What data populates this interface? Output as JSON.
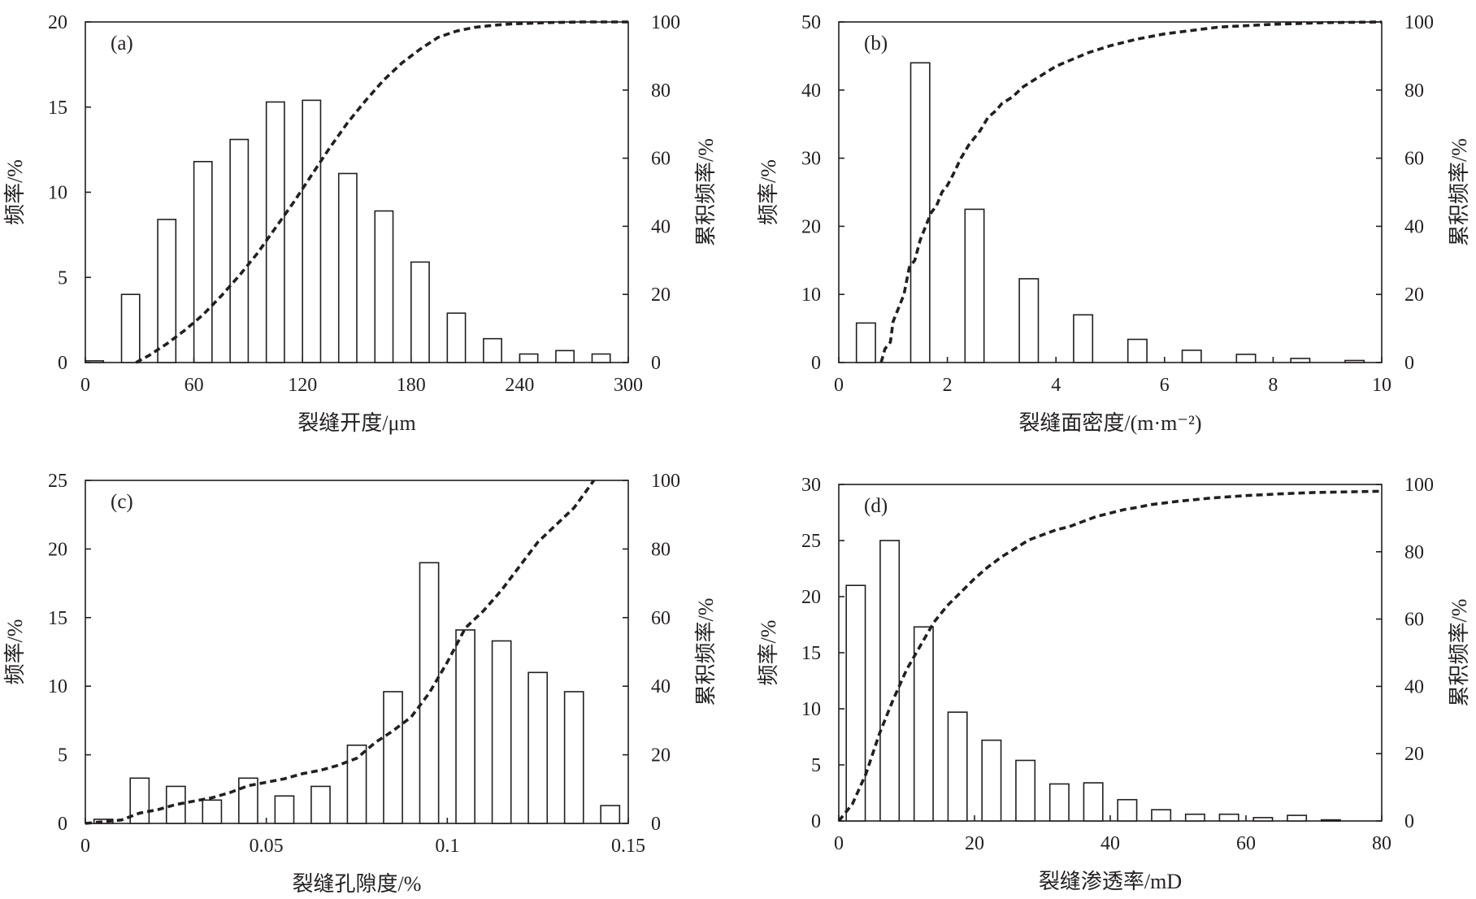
{
  "figure": {
    "colors": {
      "ink": "#231f20",
      "bar_fill": "#ffffff",
      "background": "#ffffff"
    }
  },
  "chart_data": [
    {
      "panel": "(a)",
      "type": "bar",
      "overlay": "line",
      "xlabel": "裂缝开度/μm",
      "ylabel": "频率/%",
      "y2label": "累积频率/%",
      "xlim": [
        0,
        300
      ],
      "xticks": [
        0,
        60,
        120,
        180,
        240,
        300
      ],
      "xtick_labels": [
        "0",
        "60",
        "120",
        "180",
        "240",
        "300"
      ],
      "ylim": [
        0,
        20
      ],
      "yticks": [
        0,
        5,
        10,
        15,
        20
      ],
      "ytick_labels": [
        "0",
        "5",
        "10",
        "15",
        "20"
      ],
      "y2lim": [
        0,
        100
      ],
      "y2ticks": [
        0,
        20,
        40,
        60,
        80,
        100
      ],
      "y2tick_labels": [
        "0",
        "20",
        "40",
        "60",
        "80",
        "100"
      ],
      "bar_width": 10,
      "bars": {
        "x": [
          5,
          25,
          45,
          65,
          85,
          105,
          125,
          145,
          165,
          185,
          205,
          225,
          245,
          265,
          285
        ],
        "values": [
          0.1,
          4.0,
          8.4,
          11.8,
          13.1,
          15.3,
          15.4,
          11.1,
          8.9,
          5.9,
          2.9,
          1.4,
          0.5,
          0.7,
          0.5
        ]
      },
      "cumulative": {
        "x": [
          28,
          35,
          45,
          55,
          65,
          75,
          85,
          95,
          105,
          115,
          125,
          135,
          145,
          155,
          165,
          175,
          185,
          195,
          205,
          215,
          225,
          235,
          245,
          255,
          265,
          275,
          285,
          300
        ],
        "values": [
          0,
          2,
          5.5,
          9.5,
          14,
          19.5,
          25.5,
          32,
          39.5,
          47,
          55,
          63,
          70.5,
          77,
          83,
          88,
          92,
          95.5,
          97.3,
          98.4,
          99.0,
          99.4,
          99.6,
          99.8,
          99.9,
          100,
          100,
          100
        ]
      }
    },
    {
      "panel": "(b)",
      "type": "bar",
      "overlay": "line",
      "xlabel": "裂缝面密度/(m·m⁻²)",
      "ylabel": "频率/%",
      "y2label": "累积频率/%",
      "xlim": [
        0,
        10
      ],
      "xticks": [
        0,
        2,
        4,
        6,
        8,
        10
      ],
      "xtick_labels": [
        "0",
        "2",
        "4",
        "6",
        "8",
        "10"
      ],
      "ylim": [
        0,
        50
      ],
      "yticks": [
        0,
        10,
        20,
        30,
        40,
        50
      ],
      "ytick_labels": [
        "0",
        "10",
        "20",
        "30",
        "40",
        "50"
      ],
      "y2lim": [
        0,
        100
      ],
      "y2ticks": [
        0,
        20,
        40,
        60,
        80,
        100
      ],
      "y2tick_labels": [
        "0",
        "20",
        "40",
        "60",
        "80",
        "100"
      ],
      "bar_width": 0.35,
      "bars": {
        "x": [
          0.5,
          1.5,
          2.5,
          3.5,
          4.5,
          5.5,
          6.5,
          7.5,
          8.5,
          9.5
        ],
        "values": [
          5.8,
          44.0,
          22.5,
          12.3,
          7.0,
          3.4,
          1.8,
          1.2,
          0.6,
          0.3
        ]
      },
      "cumulative": {
        "x": [
          0.78,
          0.85,
          0.95,
          1.0,
          1.1,
          1.2,
          1.3,
          1.4,
          1.5,
          1.6,
          1.7,
          1.8,
          1.9,
          2.0,
          2.1,
          2.25,
          2.4,
          2.5,
          2.6,
          2.75,
          2.9,
          3.0,
          3.2,
          3.4,
          3.6,
          3.8,
          4.0,
          4.3,
          4.6,
          5.0,
          5.5,
          6.0,
          6.5,
          7.0,
          8.0,
          9.0,
          10.0
        ],
        "values": [
          0,
          4,
          6,
          12,
          16,
          20,
          28,
          30,
          36,
          40,
          44,
          46,
          50,
          52,
          55,
          60,
          64,
          66,
          68,
          72,
          74,
          76,
          78,
          81,
          83,
          85,
          87,
          89,
          91,
          93,
          95,
          96.5,
          97.5,
          98.5,
          99.3,
          99.8,
          100
        ]
      }
    },
    {
      "panel": "(c)",
      "type": "bar",
      "overlay": "line",
      "xlabel": "裂缝孔隙度/%",
      "ylabel": "频率/%",
      "y2label": "累积频率/%",
      "xlim": [
        0,
        0.15
      ],
      "xticks": [
        0,
        0.05,
        0.1,
        0.15
      ],
      "xtick_labels": [
        "0",
        "0.05",
        "0.1",
        "0.15"
      ],
      "ylim": [
        0,
        25
      ],
      "yticks": [
        0,
        5,
        10,
        15,
        20,
        25
      ],
      "ytick_labels": [
        "0",
        "5",
        "10",
        "15",
        "20",
        "25"
      ],
      "y2lim": [
        0,
        100
      ],
      "y2ticks": [
        0,
        20,
        40,
        60,
        80,
        100
      ],
      "y2tick_labels": [
        "0",
        "20",
        "40",
        "60",
        "80",
        "100"
      ],
      "bar_width": 0.0052,
      "bars": {
        "x": [
          0.005,
          0.015,
          0.025,
          0.035,
          0.045,
          0.055,
          0.065,
          0.075,
          0.085,
          0.095,
          0.105,
          0.115,
          0.125,
          0.135,
          0.145
        ],
        "values": [
          0.3,
          3.3,
          2.7,
          1.7,
          3.3,
          2.0,
          2.7,
          5.7,
          9.6,
          19.0,
          14.1,
          13.3,
          11.0,
          9.6,
          1.3
        ]
      },
      "cumulative": {
        "x": [
          0.0,
          0.005,
          0.01,
          0.015,
          0.02,
          0.025,
          0.03,
          0.035,
          0.04,
          0.045,
          0.05,
          0.055,
          0.06,
          0.065,
          0.07,
          0.075,
          0.08,
          0.085,
          0.09,
          0.095,
          0.1,
          0.105,
          0.11,
          0.115,
          0.12,
          0.125,
          0.13,
          0.135,
          0.1405
        ],
        "values": [
          0,
          0.5,
          1,
          3,
          4,
          5.5,
          6.5,
          7.5,
          9,
          11,
          12,
          13,
          14.5,
          15.5,
          17,
          19,
          23.5,
          27,
          31,
          38,
          47,
          57,
          62,
          68,
          75,
          82,
          87,
          92,
          100
        ]
      }
    },
    {
      "panel": "(d)",
      "type": "bar",
      "overlay": "line",
      "xlabel": "裂缝渗透率/mD",
      "ylabel": "频率/%",
      "y2label": "累积频率/%",
      "xlim": [
        0,
        80
      ],
      "xticks": [
        0,
        20,
        40,
        60,
        80
      ],
      "xtick_labels": [
        "0",
        "20",
        "40",
        "60",
        "80"
      ],
      "ylim": [
        0,
        30
      ],
      "yticks": [
        0,
        5,
        10,
        15,
        20,
        25,
        30
      ],
      "ytick_labels": [
        "0",
        "5",
        "10",
        "15",
        "20",
        "25",
        "30"
      ],
      "y2lim": [
        0,
        100
      ],
      "y2ticks": [
        0,
        20,
        40,
        60,
        80,
        100
      ],
      "y2tick_labels": [
        "0",
        "20",
        "40",
        "60",
        "80",
        "100"
      ],
      "bar_width": 2.8,
      "bars": {
        "x": [
          2.5,
          7.5,
          12.5,
          17.5,
          22.5,
          27.5,
          32.5,
          37.5,
          42.5,
          47.5,
          52.5,
          57.5,
          62.5,
          67.5,
          72.5
        ],
        "values": [
          21.0,
          25.0,
          17.3,
          9.7,
          7.2,
          5.4,
          3.3,
          3.4,
          1.9,
          1.0,
          0.6,
          0.6,
          0.3,
          0.5,
          0.1
        ]
      },
      "cumulative": {
        "x": [
          0,
          2,
          4,
          6,
          8,
          10,
          12,
          14,
          16,
          18,
          20,
          22,
          24,
          26,
          28,
          30,
          32,
          34,
          36,
          38,
          40,
          42,
          44,
          46,
          48,
          50,
          55,
          60,
          65,
          70,
          75,
          80
        ],
        "values": [
          0,
          5,
          14,
          26,
          36,
          45,
          52,
          59,
          64,
          68,
          72,
          75.5,
          78.5,
          81,
          83.5,
          85,
          86.5,
          87.5,
          89,
          90.5,
          91.5,
          92.5,
          93.2,
          94,
          94.5,
          95,
          96,
          96.7,
          97.2,
          97.6,
          97.8,
          98
        ]
      }
    }
  ]
}
